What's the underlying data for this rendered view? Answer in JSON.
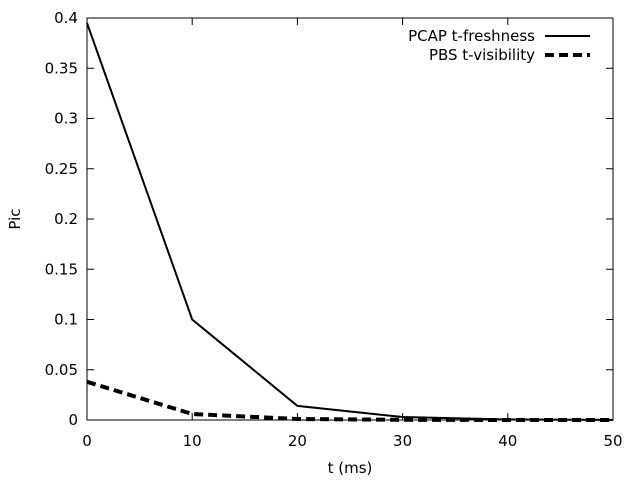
{
  "chart_data": {
    "type": "line",
    "title": "",
    "xlabel": "t (ms)",
    "ylabel": "Pic",
    "xlim": [
      0,
      50
    ],
    "ylim": [
      0,
      0.4
    ],
    "x_ticks": [
      0,
      10,
      20,
      30,
      40,
      50
    ],
    "y_ticks": [
      0,
      0.05,
      0.1,
      0.15,
      0.2,
      0.25,
      0.3,
      0.35,
      0.4
    ],
    "grid": false,
    "legend_position": "top-right",
    "series": [
      {
        "name": "PCAP t-freshness",
        "style": "solid",
        "color": "#000000",
        "x": [
          0,
          10,
          20,
          30,
          40,
          50
        ],
        "y": [
          0.395,
          0.1,
          0.014,
          0.003,
          0.0005,
          0.0001
        ]
      },
      {
        "name": "PBS t-visibility",
        "style": "dashed",
        "color": "#000000",
        "x": [
          0,
          10,
          20,
          30,
          40,
          50
        ],
        "y": [
          0.038,
          0.006,
          0.001,
          0.0002,
          0.0,
          0.0
        ]
      }
    ]
  }
}
